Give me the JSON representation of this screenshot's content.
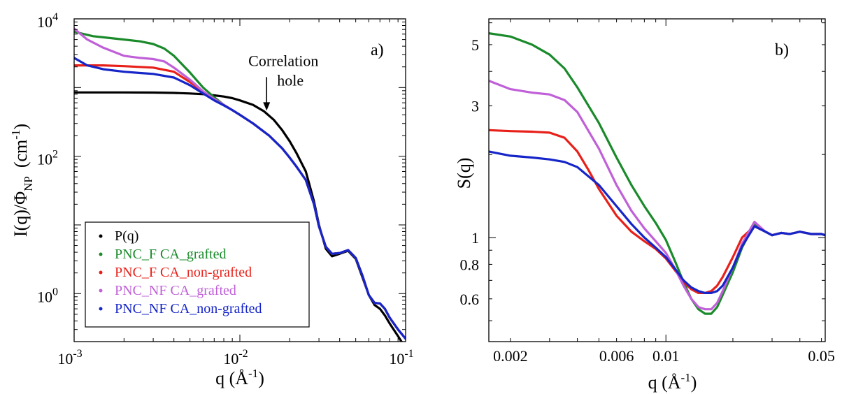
{
  "colors": {
    "P(q)": "#000000",
    "PNC_F CA_grafted": "#1a8a2a",
    "PNC_F CA_non-grafted": "#e8201a",
    "PNC_NF CA_grafted": "#c060d8",
    "PNC_NF CA_non-grafted": "#1525c8"
  },
  "chart_data": [
    {
      "type": "line",
      "panel_label": "a)",
      "xlabel": "q (Å",
      "xlabel_sup": "-1",
      "xlabel_close": ")",
      "ylabel": "I(q)/Φ",
      "ylabel_sub": "NP",
      "ylabel_unit": "(cm",
      "ylabel_unit_sup": "-1",
      "ylabel_unit_close": ")",
      "xscale": "log",
      "yscale": "log",
      "xlim": [
        0.001,
        0.1
      ],
      "ylim": [
        0.2,
        10000
      ],
      "xticks": [
        {
          "value": 0.001,
          "base": "10",
          "exp": "-3"
        },
        {
          "value": 0.01,
          "base": "10",
          "exp": "-2"
        },
        {
          "value": 0.1,
          "base": "10",
          "exp": "-1"
        }
      ],
      "yticks": [
        {
          "value": 1,
          "base": "10",
          "exp": "0"
        },
        {
          "value": 100,
          "base": "10",
          "exp": "2"
        },
        {
          "value": 10000,
          "base": "10",
          "exp": "4"
        }
      ],
      "legend_position": "bottom-left",
      "annotation": {
        "lines": [
          "Correlation",
          "hole"
        ],
        "x": 0.0145,
        "y": 420
      },
      "series": [
        {
          "name": "P(q)",
          "x": [
            0.001,
            0.002,
            0.003,
            0.004,
            0.005,
            0.006,
            0.007,
            0.008,
            0.009,
            0.01,
            0.012,
            0.014,
            0.016,
            0.018,
            0.02,
            0.022,
            0.025,
            0.028,
            0.03,
            0.033,
            0.036,
            0.04,
            0.045,
            0.05,
            0.055,
            0.06,
            0.065,
            0.07,
            0.075,
            0.08,
            0.09,
            0.1
          ],
          "y": [
            850,
            850,
            845,
            835,
            820,
            800,
            770,
            740,
            700,
            650,
            560,
            450,
            340,
            240,
            165,
            110,
            60,
            22,
            10,
            4.5,
            3.5,
            3.8,
            4.2,
            3.2,
            1.7,
            0.95,
            0.68,
            0.6,
            0.48,
            0.37,
            0.24,
            0.16
          ]
        },
        {
          "name": "PNC_F CA_grafted",
          "x": [
            0.001,
            0.0013,
            0.0016,
            0.002,
            0.0025,
            0.003,
            0.0035,
            0.004,
            0.005,
            0.006,
            0.007,
            0.008,
            0.009,
            0.01,
            0.012,
            0.015,
            0.018,
            0.02,
            0.022,
            0.025,
            0.028,
            0.03,
            0.033,
            0.036,
            0.04,
            0.045,
            0.05,
            0.055,
            0.06,
            0.065,
            0.07,
            0.075,
            0.08,
            0.09,
            0.1
          ],
          "y": [
            6500,
            5600,
            5300,
            5000,
            4700,
            4300,
            3700,
            2900,
            1650,
            1000,
            720,
            560,
            470,
            400,
            300,
            200,
            130,
            95,
            70,
            45,
            20,
            9.5,
            4.8,
            3.8,
            3.9,
            4.3,
            3.3,
            1.8,
            0.95,
            0.73,
            0.72,
            0.6,
            0.45,
            0.3,
            0.22
          ]
        },
        {
          "name": "PNC_F CA_non-grafted",
          "x": [
            0.001,
            0.0015,
            0.002,
            0.003,
            0.004,
            0.005,
            0.006,
            0.007,
            0.008,
            0.009,
            0.01,
            0.012,
            0.015,
            0.018,
            0.02,
            0.022,
            0.025,
            0.028,
            0.03,
            0.033,
            0.036,
            0.04,
            0.045,
            0.05,
            0.055,
            0.06,
            0.065,
            0.07,
            0.075,
            0.08,
            0.09,
            0.1
          ],
          "y": [
            2100,
            2100,
            2050,
            1950,
            1700,
            1200,
            870,
            680,
            560,
            470,
            400,
            300,
            200,
            130,
            95,
            70,
            45,
            20,
            9.5,
            4.8,
            3.8,
            3.9,
            4.3,
            3.3,
            1.8,
            0.95,
            0.73,
            0.72,
            0.6,
            0.45,
            0.3,
            0.22
          ]
        },
        {
          "name": "PNC_NF CA_grafted",
          "x": [
            0.001,
            0.0012,
            0.0015,
            0.002,
            0.0025,
            0.003,
            0.0035,
            0.004,
            0.005,
            0.006,
            0.007,
            0.008,
            0.009,
            0.01,
            0.012,
            0.015,
            0.018,
            0.02,
            0.022,
            0.025,
            0.028,
            0.03,
            0.033,
            0.036,
            0.04,
            0.045,
            0.05,
            0.055,
            0.06,
            0.065,
            0.07,
            0.075,
            0.08,
            0.09,
            0.1
          ],
          "y": [
            7200,
            5000,
            3800,
            2900,
            2700,
            2600,
            2400,
            1950,
            1300,
            880,
            680,
            560,
            470,
            400,
            300,
            200,
            130,
            95,
            70,
            45,
            20,
            9.5,
            4.8,
            3.8,
            3.9,
            4.3,
            3.3,
            1.8,
            0.95,
            0.73,
            0.72,
            0.6,
            0.45,
            0.3,
            0.22
          ]
        },
        {
          "name": "PNC_NF CA_non-grafted",
          "x": [
            0.001,
            0.0012,
            0.0015,
            0.002,
            0.0025,
            0.003,
            0.004,
            0.005,
            0.006,
            0.007,
            0.008,
            0.009,
            0.01,
            0.012,
            0.015,
            0.018,
            0.02,
            0.022,
            0.025,
            0.028,
            0.03,
            0.033,
            0.036,
            0.04,
            0.045,
            0.05,
            0.055,
            0.06,
            0.065,
            0.07,
            0.075,
            0.08,
            0.09,
            0.1
          ],
          "y": [
            2700,
            2100,
            1850,
            1700,
            1630,
            1580,
            1400,
            1080,
            820,
            650,
            550,
            470,
            400,
            300,
            200,
            130,
            95,
            70,
            45,
            20,
            9.5,
            4.8,
            3.8,
            3.9,
            4.3,
            3.3,
            1.8,
            0.95,
            0.73,
            0.72,
            0.6,
            0.45,
            0.3,
            0.22
          ]
        }
      ]
    },
    {
      "type": "line",
      "panel_label": "b)",
      "xlabel": "q (Å",
      "xlabel_sup": "-1",
      "xlabel_close": ")",
      "ylabel": "S(q)",
      "xscale": "log",
      "yscale": "log",
      "xlim": [
        0.0016,
        0.052
      ],
      "ylim": [
        0.42,
        6.2
      ],
      "xticks": [
        {
          "value": 0.002,
          "label": "0.002"
        },
        {
          "value": 0.006,
          "label": "0.006"
        },
        {
          "value": 0.01,
          "label": "0.01"
        },
        {
          "value": 0.05,
          "label": "0.05"
        }
      ],
      "yticks": [
        {
          "value": 0.6,
          "label": "0.6"
        },
        {
          "value": 0.8,
          "label": "0.8"
        },
        {
          "value": 1,
          "label": "1"
        },
        {
          "value": 3,
          "label": "3"
        },
        {
          "value": 5,
          "label": "5"
        }
      ],
      "series": [
        {
          "name": "PNC_F CA_grafted",
          "x": [
            0.0016,
            0.002,
            0.0025,
            0.003,
            0.0035,
            0.004,
            0.005,
            0.006,
            0.007,
            0.008,
            0.009,
            0.01,
            0.011,
            0.012,
            0.013,
            0.014,
            0.015,
            0.016,
            0.017,
            0.018,
            0.02,
            0.022,
            0.025,
            0.028,
            0.03,
            0.033,
            0.036,
            0.04,
            0.045,
            0.05,
            0.052
          ],
          "y": [
            5.5,
            5.35,
            5.0,
            4.6,
            4.1,
            3.5,
            2.6,
            1.95,
            1.55,
            1.3,
            1.13,
            0.98,
            0.82,
            0.69,
            0.6,
            0.55,
            0.53,
            0.53,
            0.56,
            0.62,
            0.75,
            0.92,
            1.12,
            1.05,
            1.02,
            1.04,
            1.03,
            1.05,
            1.03,
            1.03,
            1.02
          ]
        },
        {
          "name": "PNC_F CA_non-grafted",
          "x": [
            0.0016,
            0.002,
            0.0025,
            0.003,
            0.0035,
            0.004,
            0.0045,
            0.005,
            0.006,
            0.007,
            0.008,
            0.009,
            0.01,
            0.011,
            0.012,
            0.013,
            0.014,
            0.015,
            0.016,
            0.017,
            0.018,
            0.02,
            0.022,
            0.025,
            0.028,
            0.03,
            0.033,
            0.036,
            0.04,
            0.045,
            0.05,
            0.052
          ],
          "y": [
            2.45,
            2.43,
            2.42,
            2.4,
            2.3,
            2.05,
            1.75,
            1.5,
            1.2,
            1.05,
            0.97,
            0.91,
            0.84,
            0.76,
            0.69,
            0.65,
            0.63,
            0.63,
            0.64,
            0.67,
            0.72,
            0.85,
            1.0,
            1.1,
            1.05,
            1.02,
            1.04,
            1.03,
            1.05,
            1.03,
            1.03,
            1.02
          ]
        },
        {
          "name": "PNC_NF CA_grafted",
          "x": [
            0.0016,
            0.002,
            0.0025,
            0.003,
            0.0035,
            0.004,
            0.005,
            0.006,
            0.007,
            0.008,
            0.009,
            0.01,
            0.011,
            0.012,
            0.013,
            0.014,
            0.015,
            0.016,
            0.017,
            0.018,
            0.02,
            0.022,
            0.025,
            0.028,
            0.03,
            0.033,
            0.036,
            0.04,
            0.045,
            0.05,
            0.052
          ],
          "y": [
            3.7,
            3.45,
            3.35,
            3.3,
            3.15,
            2.85,
            2.1,
            1.55,
            1.25,
            1.08,
            0.97,
            0.88,
            0.77,
            0.67,
            0.6,
            0.56,
            0.55,
            0.55,
            0.58,
            0.64,
            0.78,
            0.95,
            1.14,
            1.05,
            1.02,
            1.04,
            1.03,
            1.05,
            1.03,
            1.03,
            1.02
          ]
        },
        {
          "name": "PNC_NF CA_non-grafted",
          "x": [
            0.0016,
            0.002,
            0.0025,
            0.003,
            0.0035,
            0.004,
            0.005,
            0.006,
            0.007,
            0.008,
            0.009,
            0.01,
            0.011,
            0.012,
            0.013,
            0.014,
            0.015,
            0.016,
            0.017,
            0.018,
            0.02,
            0.022,
            0.025,
            0.028,
            0.03,
            0.033,
            0.036,
            0.04,
            0.045,
            0.05,
            0.052
          ],
          "y": [
            2.05,
            1.98,
            1.95,
            1.92,
            1.88,
            1.8,
            1.55,
            1.3,
            1.12,
            1.0,
            0.92,
            0.85,
            0.77,
            0.7,
            0.66,
            0.64,
            0.63,
            0.63,
            0.64,
            0.67,
            0.78,
            0.93,
            1.1,
            1.05,
            1.02,
            1.04,
            1.03,
            1.05,
            1.03,
            1.03,
            1.02
          ]
        }
      ]
    }
  ]
}
